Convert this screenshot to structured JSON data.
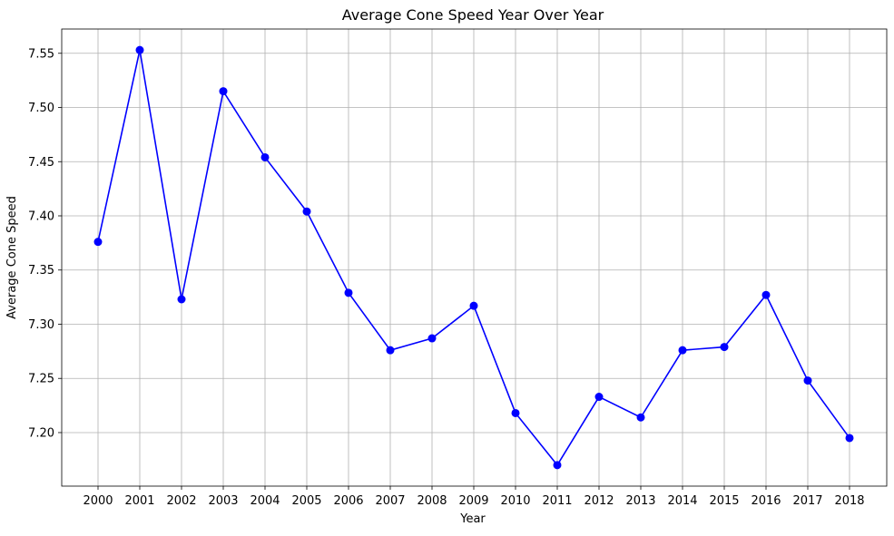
{
  "chart_data": {
    "type": "line",
    "title": "Average Cone Speed Year Over Year",
    "xlabel": "Year",
    "ylabel": "Average Cone Speed",
    "x": [
      "2000",
      "2001",
      "2002",
      "2003",
      "2004",
      "2005",
      "2006",
      "2007",
      "2008",
      "2009",
      "2010",
      "2011",
      "2012",
      "2013",
      "2014",
      "2015",
      "2016",
      "2017",
      "2018"
    ],
    "series": [
      {
        "values": [
          7.376,
          7.553,
          7.323,
          7.515,
          7.454,
          7.404,
          7.329,
          7.276,
          7.287,
          7.317,
          7.218,
          7.17,
          7.233,
          7.214,
          7.276,
          7.279,
          7.327,
          7.248,
          7.195
        ],
        "color": "#0000ff",
        "marker": "circle"
      }
    ],
    "yticks": [
      "7.20",
      "7.25",
      "7.30",
      "7.35",
      "7.40",
      "7.45",
      "7.50",
      "7.55"
    ],
    "ylim": [
      7.1506,
      7.5724
    ],
    "grid": true,
    "legend": "none"
  }
}
